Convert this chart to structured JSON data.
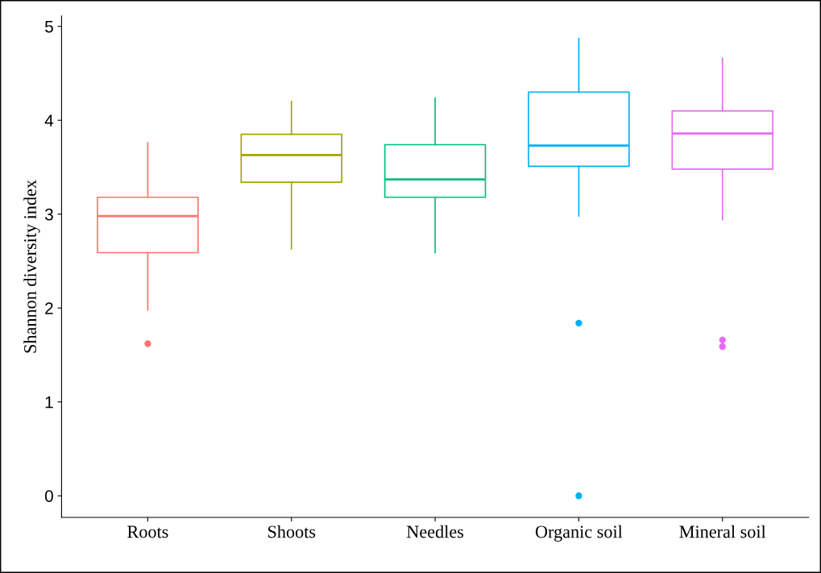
{
  "chart_data": {
    "type": "box",
    "ylabel": "Shannon diversity index",
    "categories": [
      "Roots",
      "Shoots",
      "Needles",
      "Organic soil",
      "Mineral soil"
    ],
    "colors": [
      "#f8766d",
      "#a3a500",
      "#00bf7d",
      "#00b0f6",
      "#e76bf3"
    ],
    "boxes": [
      {
        "low": 1.98,
        "q1": 2.59,
        "median": 2.98,
        "q3": 3.18,
        "high": 3.76,
        "outliers": [
          1.62
        ]
      },
      {
        "low": 2.63,
        "q1": 3.34,
        "median": 3.63,
        "q3": 3.85,
        "high": 4.2
      },
      {
        "low": 2.59,
        "q1": 3.18,
        "median": 3.37,
        "q3": 3.74,
        "high": 4.24
      },
      {
        "low": 2.98,
        "q1": 3.51,
        "median": 3.73,
        "q3": 4.3,
        "high": 4.87,
        "outliers": [
          1.84,
          0
        ]
      },
      {
        "low": 2.94,
        "q1": 3.48,
        "median": 3.86,
        "q3": 4.1,
        "high": 4.66,
        "outliers": [
          1.66,
          1.59
        ]
      }
    ],
    "ylim": [
      -0.23,
      5.11
    ],
    "yticks": [
      0,
      1,
      2,
      3,
      4,
      5
    ],
    "grid": false,
    "legend": false
  }
}
